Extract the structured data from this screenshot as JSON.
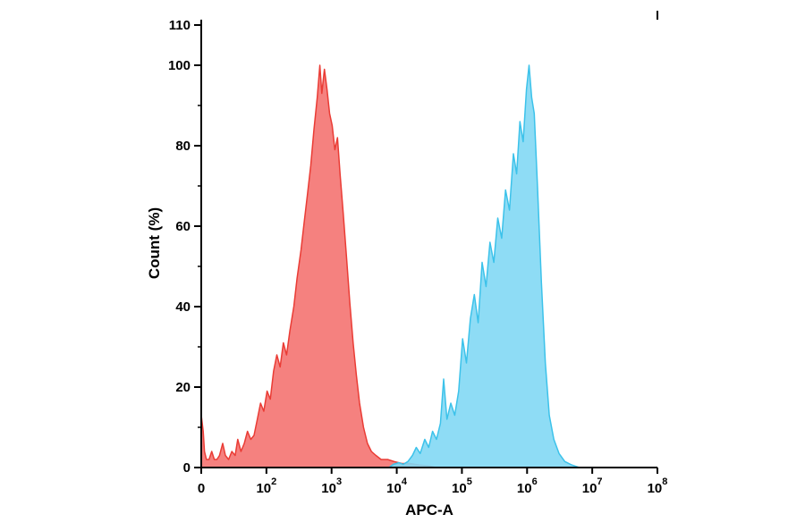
{
  "figure": {
    "background": "#ffffff"
  },
  "chart_data": {
    "type": "area",
    "subtype": "flow-cytometry-histogram-overlay",
    "title": "",
    "xlabel": "APC-A",
    "ylabel": "Count (%)",
    "grid": false,
    "legend": "none",
    "x_axis": {
      "scale": "log-decades",
      "range": [
        0,
        7
      ],
      "ticks": [
        {
          "pos": 0,
          "label": "0"
        },
        {
          "pos": 1,
          "label": "10",
          "exp": "2"
        },
        {
          "pos": 2,
          "label": "10",
          "exp": "3"
        },
        {
          "pos": 3,
          "label": "10",
          "exp": "4"
        },
        {
          "pos": 4,
          "label": "10",
          "exp": "5"
        },
        {
          "pos": 5,
          "label": "10",
          "exp": "6"
        },
        {
          "pos": 6,
          "label": "10",
          "exp": "7"
        },
        {
          "pos": 7,
          "label": "10",
          "exp": "8"
        }
      ]
    },
    "y_axis": {
      "range": [
        0,
        110
      ],
      "ticks": [
        {
          "value": 0,
          "label": "0"
        },
        {
          "value": 20,
          "label": "20"
        },
        {
          "value": 40,
          "label": "40"
        },
        {
          "value": 60,
          "label": "60"
        },
        {
          "value": 80,
          "label": "80"
        },
        {
          "value": 100,
          "label": "100"
        },
        {
          "value": 110,
          "label": "110"
        }
      ],
      "minor_ticks": [
        10,
        30,
        50,
        70,
        90
      ]
    },
    "series": [
      {
        "name": "red-histogram",
        "peak_x_decade": "10^3",
        "peak_y": 100,
        "fill": "#f4706d",
        "fill_opacity": 0.88,
        "stroke": "#ea3c35",
        "points": [
          [
            0.0,
            13
          ],
          [
            0.03,
            9
          ],
          [
            0.05,
            4
          ],
          [
            0.08,
            2
          ],
          [
            0.12,
            2
          ],
          [
            0.16,
            4
          ],
          [
            0.2,
            2
          ],
          [
            0.24,
            2
          ],
          [
            0.28,
            3
          ],
          [
            0.33,
            6
          ],
          [
            0.37,
            3
          ],
          [
            0.42,
            2
          ],
          [
            0.47,
            4
          ],
          [
            0.52,
            3
          ],
          [
            0.56,
            7
          ],
          [
            0.61,
            4
          ],
          [
            0.66,
            6
          ],
          [
            0.71,
            9
          ],
          [
            0.76,
            7
          ],
          [
            0.81,
            8
          ],
          [
            0.86,
            12
          ],
          [
            0.91,
            16
          ],
          [
            0.96,
            14
          ],
          [
            1.01,
            19
          ],
          [
            1.06,
            17
          ],
          [
            1.11,
            24
          ],
          [
            1.16,
            28
          ],
          [
            1.21,
            25
          ],
          [
            1.26,
            31
          ],
          [
            1.31,
            28
          ],
          [
            1.36,
            34
          ],
          [
            1.42,
            40
          ],
          [
            1.47,
            47
          ],
          [
            1.53,
            54
          ],
          [
            1.58,
            61
          ],
          [
            1.63,
            68
          ],
          [
            1.68,
            75
          ],
          [
            1.73,
            84
          ],
          [
            1.78,
            92
          ],
          [
            1.82,
            100
          ],
          [
            1.85,
            93
          ],
          [
            1.89,
            99
          ],
          [
            1.93,
            94
          ],
          [
            1.97,
            88
          ],
          [
            2.01,
            85
          ],
          [
            2.05,
            79
          ],
          [
            2.09,
            82
          ],
          [
            2.13,
            73
          ],
          [
            2.18,
            63
          ],
          [
            2.23,
            52
          ],
          [
            2.28,
            41
          ],
          [
            2.33,
            31
          ],
          [
            2.38,
            23
          ],
          [
            2.43,
            16
          ],
          [
            2.49,
            10
          ],
          [
            2.55,
            6
          ],
          [
            2.61,
            4
          ],
          [
            2.68,
            3
          ],
          [
            2.76,
            2
          ],
          [
            2.86,
            2
          ],
          [
            2.96,
            1.5
          ],
          [
            3.08,
            1
          ],
          [
            3.2,
            1
          ],
          [
            3.35,
            0.6
          ],
          [
            3.5,
            0.4
          ],
          [
            3.6,
            0
          ]
        ]
      },
      {
        "name": "blue-histogram",
        "peak_x_decade": "10^6",
        "peak_y": 100,
        "fill": "#82d8f4",
        "fill_opacity": 0.9,
        "stroke": "#3cc2ea",
        "points": [
          [
            2.88,
            0
          ],
          [
            2.95,
            0.8
          ],
          [
            3.03,
            1.2
          ],
          [
            3.1,
            0.8
          ],
          [
            3.17,
            1.5
          ],
          [
            3.24,
            3
          ],
          [
            3.3,
            5
          ],
          [
            3.36,
            3.5
          ],
          [
            3.43,
            7
          ],
          [
            3.49,
            5
          ],
          [
            3.55,
            9
          ],
          [
            3.61,
            7
          ],
          [
            3.67,
            11
          ],
          [
            3.72,
            22
          ],
          [
            3.77,
            12
          ],
          [
            3.83,
            16
          ],
          [
            3.89,
            13
          ],
          [
            3.95,
            19
          ],
          [
            4.01,
            32
          ],
          [
            4.07,
            26
          ],
          [
            4.13,
            37
          ],
          [
            4.19,
            43
          ],
          [
            4.25,
            36
          ],
          [
            4.31,
            51
          ],
          [
            4.37,
            45
          ],
          [
            4.43,
            56
          ],
          [
            4.49,
            51
          ],
          [
            4.55,
            62
          ],
          [
            4.61,
            57
          ],
          [
            4.67,
            69
          ],
          [
            4.73,
            64
          ],
          [
            4.79,
            78
          ],
          [
            4.84,
            73
          ],
          [
            4.89,
            86
          ],
          [
            4.94,
            81
          ],
          [
            4.99,
            94
          ],
          [
            5.03,
            100
          ],
          [
            5.07,
            92
          ],
          [
            5.11,
            88
          ],
          [
            5.16,
            70
          ],
          [
            5.22,
            46
          ],
          [
            5.28,
            26
          ],
          [
            5.34,
            13
          ],
          [
            5.41,
            7
          ],
          [
            5.49,
            3.5
          ],
          [
            5.58,
            1.5
          ],
          [
            5.68,
            0.7
          ],
          [
            5.8,
            0
          ]
        ]
      }
    ]
  }
}
